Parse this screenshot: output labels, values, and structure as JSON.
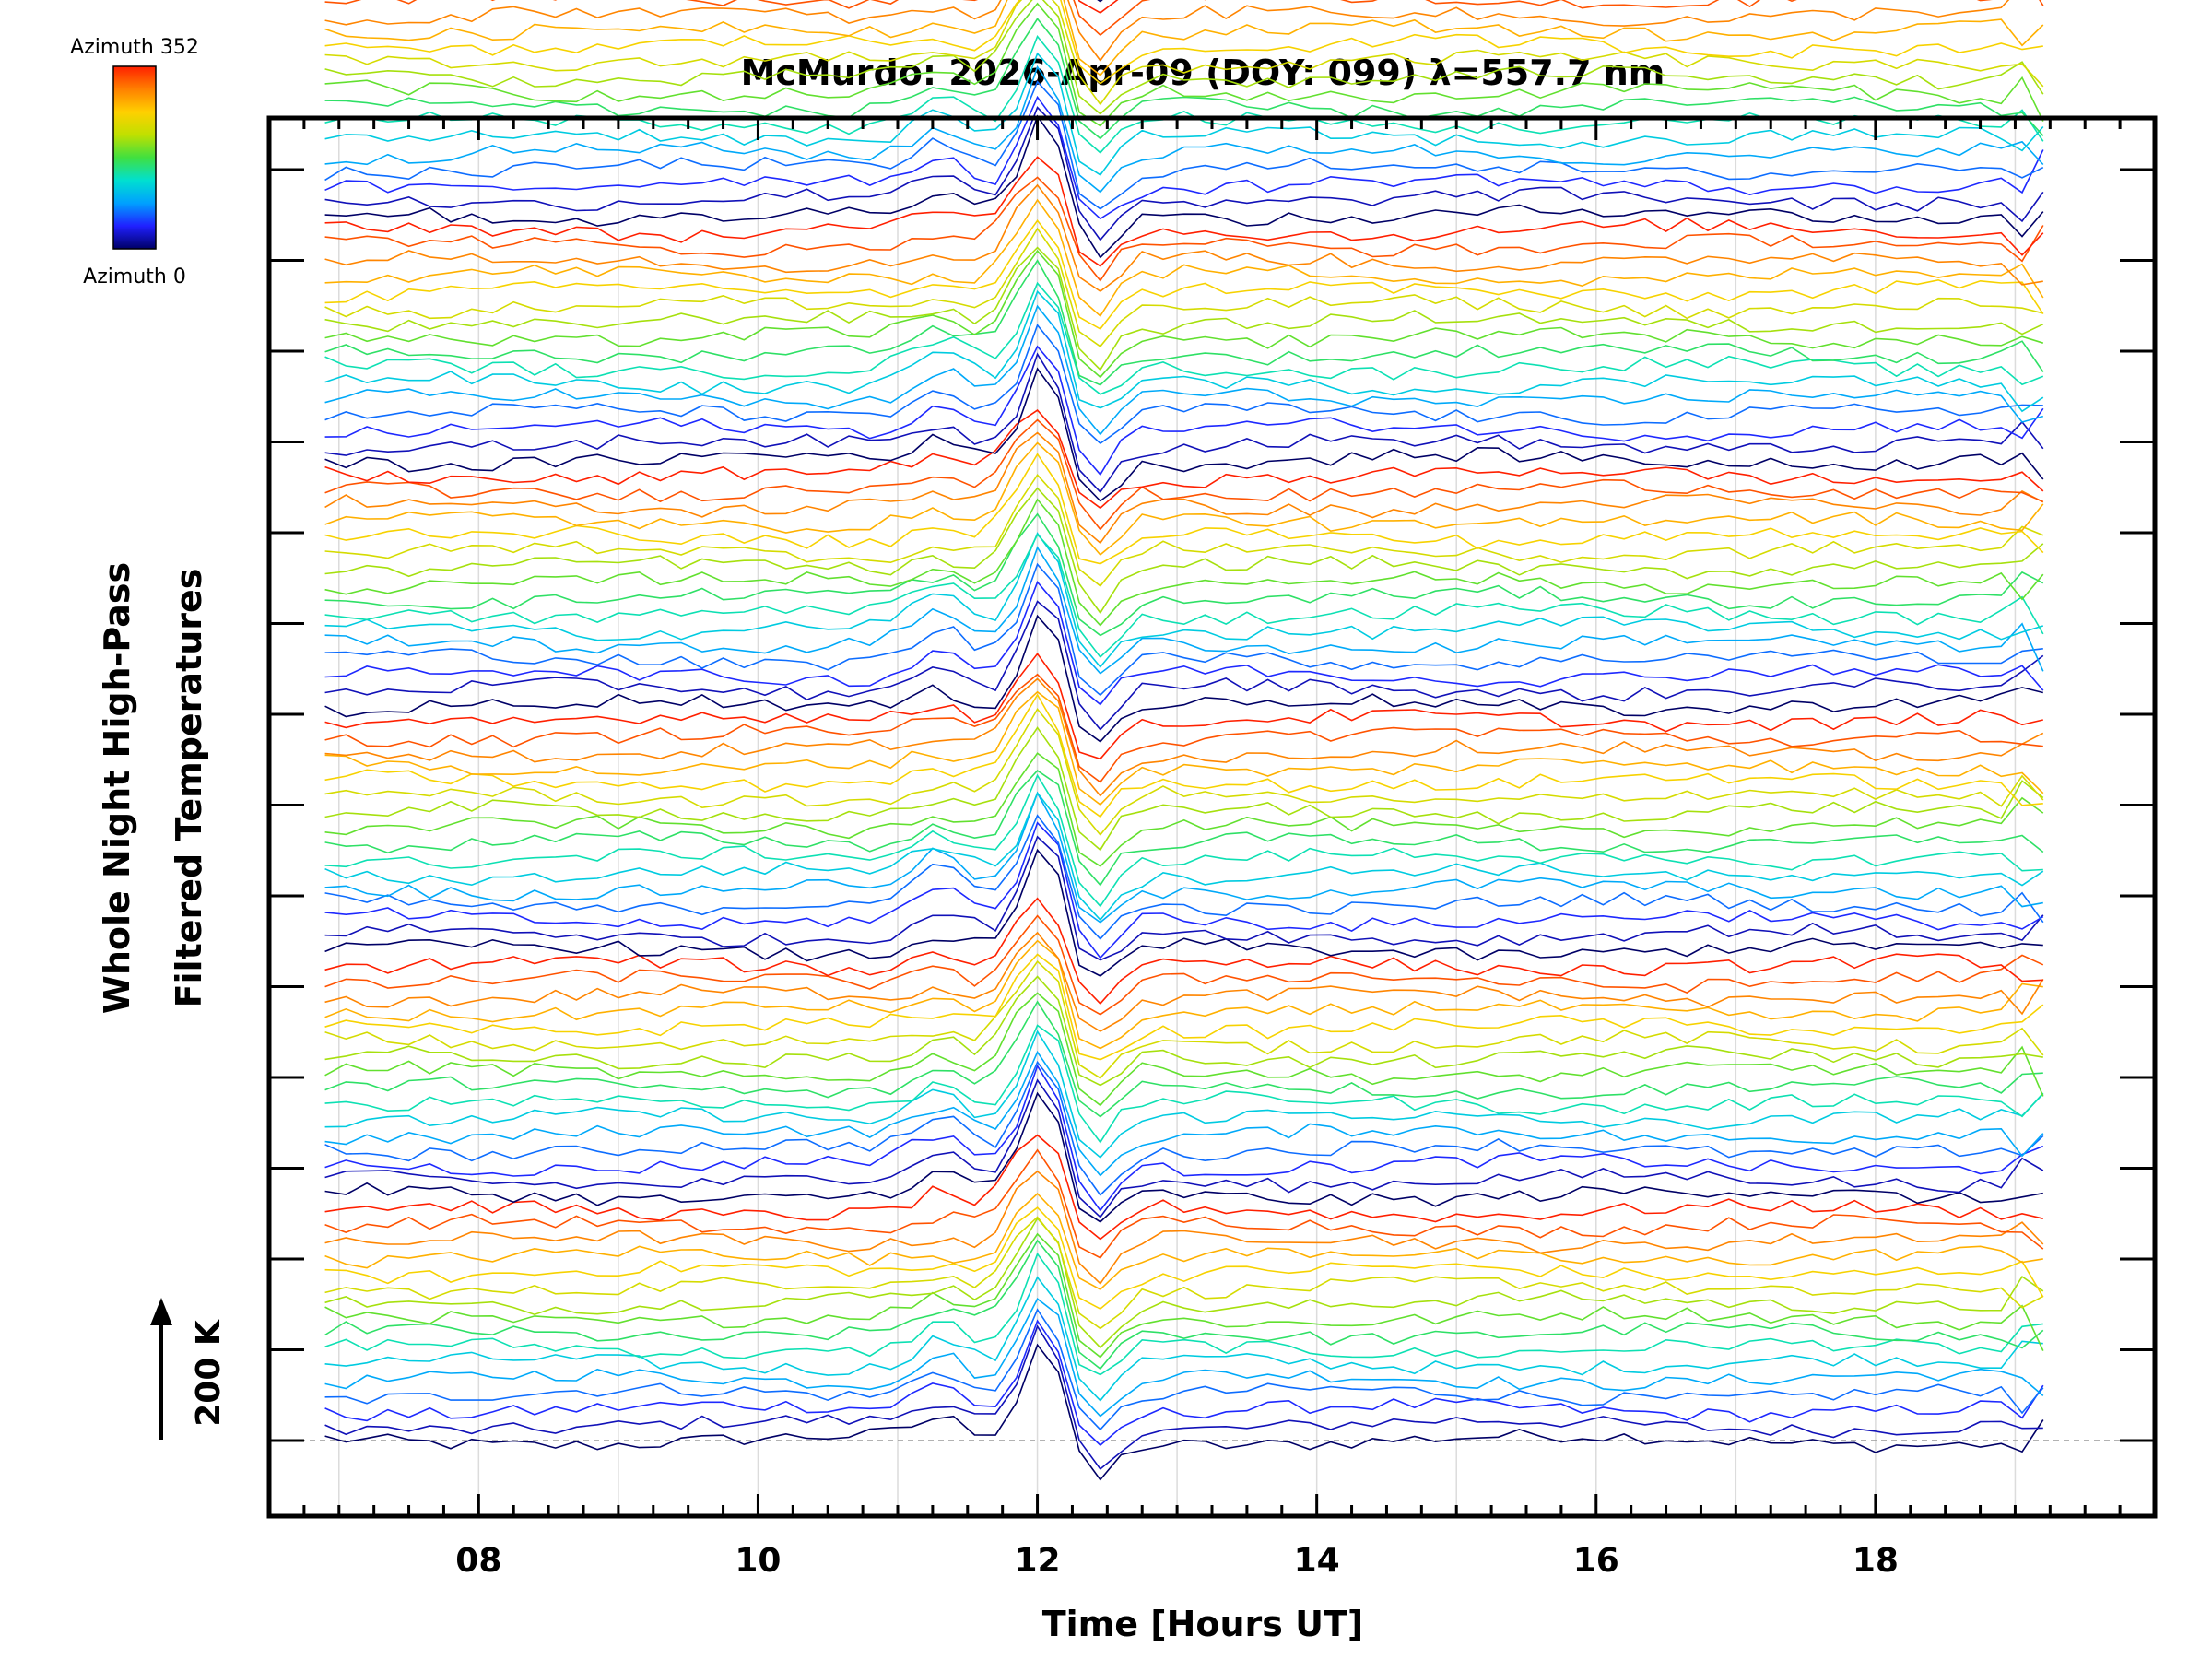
{
  "chart_data": {
    "type": "line",
    "title": "McMurdo: 2026-Apr-09 (DOY: 099) λ=557.7 nm",
    "xlabel": "Time [Hours UT]",
    "ylabel_line1": "Whole Night High-Pass",
    "ylabel_line2": "Filtered Temperatures",
    "xlim": [
      6.5,
      20.0
    ],
    "x_ticks": [
      8,
      10,
      12,
      14,
      16,
      18
    ],
    "x_tick_labels": [
      "08",
      "10",
      "12",
      "14",
      "16",
      "18"
    ],
    "x_minor_step": 0.25,
    "time_start": 6.9,
    "time_end": 19.3,
    "time_step": 0.15,
    "y_scale_label": "200 K",
    "colorbar": {
      "top_label": "Azimuth 352",
      "bottom_label": "Azimuth 0",
      "colors": [
        "#000066",
        "#2020ff",
        "#00a0ff",
        "#00e0d0",
        "#40e040",
        "#c0e000",
        "#ffd000",
        "#ff8000",
        "#ff2000"
      ]
    },
    "groups": 7,
    "traces_per_group": 16,
    "trace_spacing_K": 17.5,
    "azimuth_range": [
      0,
      352
    ],
    "features": {
      "main_spike": {
        "time": 12.05,
        "amplitude_K": 120,
        "width_h": 0.18
      },
      "negative_dip": {
        "time": 12.4,
        "amplitude_K": -45,
        "width_h": 0.2
      },
      "precursor_hump": {
        "time": 11.3,
        "amplitude_K": 35,
        "width_h": 0.25
      },
      "secondary_peak": {
        "time": 11.8,
        "amplitude_K": 40,
        "width_h": 0.1
      }
    }
  }
}
